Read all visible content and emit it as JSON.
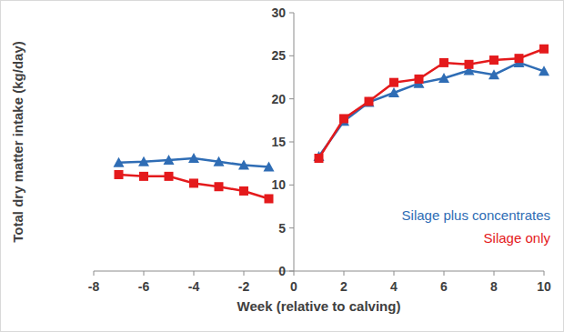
{
  "chart_data": {
    "type": "line",
    "x_label": "Week (relative to calving)",
    "y_label": "Total dry matter intake (kg/day)",
    "x": [
      -7,
      -6,
      -5,
      -4,
      -3,
      -2,
      -1,
      0,
      1,
      2,
      3,
      4,
      5,
      6,
      7,
      8,
      9,
      10
    ],
    "series": [
      {
        "name": "Silage plus concentrates",
        "color": "#2f6db5",
        "marker": "triangle",
        "values": [
          12.6,
          12.7,
          12.9,
          13.1,
          12.7,
          12.3,
          12.1,
          null,
          13.3,
          17.4,
          19.6,
          20.7,
          21.8,
          22.4,
          23.3,
          22.8,
          24.2,
          23.2
        ]
      },
      {
        "name": "Silage only",
        "color": "#e41a1c",
        "marker": "square",
        "values": [
          11.2,
          11.0,
          11.0,
          10.2,
          9.8,
          9.3,
          8.4,
          null,
          13.1,
          17.7,
          19.7,
          21.9,
          22.3,
          24.2,
          24.0,
          24.5,
          24.7,
          25.8
        ]
      }
    ],
    "xlim": [
      -8,
      10
    ],
    "xticks": [
      -8,
      -6,
      -4,
      -2,
      0,
      2,
      4,
      6,
      8,
      10
    ],
    "ylim": [
      0,
      30
    ],
    "yticks": [
      0,
      5,
      10,
      15,
      20,
      25,
      30
    ],
    "grid": false,
    "legend": "lower right"
  }
}
